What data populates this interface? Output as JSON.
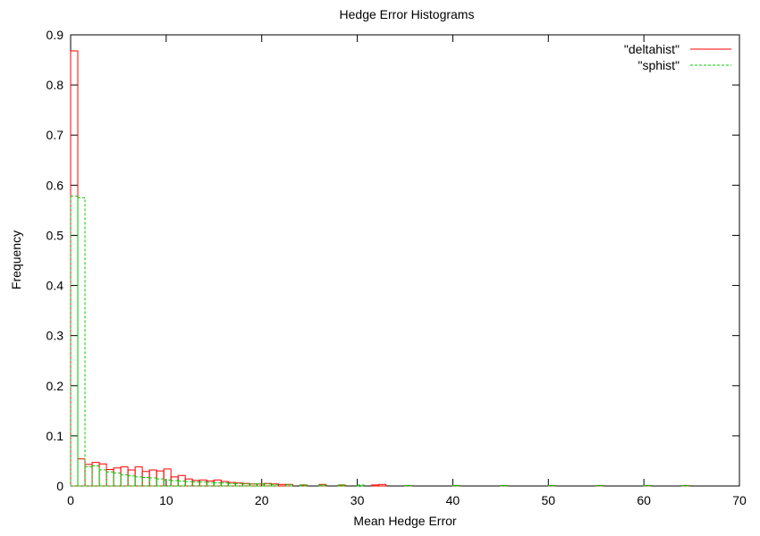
{
  "chart_data": {
    "type": "bar",
    "title": "Hedge Error Histograms",
    "xlabel": "Mean Hedge Error",
    "ylabel": "Frequency",
    "xlim": [
      0,
      70
    ],
    "ylim": [
      0,
      0.9
    ],
    "xticks": [
      "0",
      "10",
      "20",
      "30",
      "40",
      "50",
      "60",
      "70"
    ],
    "yticks": [
      "0",
      "0.1",
      "0.2",
      "0.3",
      "0.4",
      "0.5",
      "0.6",
      "0.7",
      "0.8",
      "0.9"
    ],
    "grid": false,
    "legend_position": "top-right",
    "bin_width": 0.75,
    "series": [
      {
        "name": "\"deltahist\"",
        "color": "#ff0000",
        "line_style": "solid",
        "x": [
          0,
          0.75,
          1.5,
          2.25,
          3,
          3.75,
          4.5,
          5.25,
          6,
          6.75,
          7.5,
          8.25,
          9,
          9.75,
          10.5,
          11.25,
          12,
          12.75,
          13.5,
          14.25,
          15,
          15.75,
          16.5,
          17.25,
          18,
          18.75,
          19.5,
          20.25,
          21,
          21.75,
          22.5,
          24,
          26,
          28,
          31.5,
          32.25,
          35,
          40,
          45,
          50,
          55,
          60,
          64
        ],
        "values": [
          0.868,
          0.054,
          0.043,
          0.047,
          0.044,
          0.033,
          0.036,
          0.038,
          0.032,
          0.038,
          0.029,
          0.032,
          0.03,
          0.034,
          0.018,
          0.021,
          0.014,
          0.011,
          0.012,
          0.01,
          0.012,
          0.009,
          0.007,
          0.006,
          0.005,
          0.004,
          0.004,
          0.005,
          0.004,
          0.003,
          0.003,
          0.002,
          0.003,
          0.002,
          0.002,
          0.003,
          0.001,
          0.001,
          0.001,
          0.001,
          0.001,
          0.001,
          0.001
        ]
      },
      {
        "name": "\"sphist\"",
        "color": "#00cc00",
        "line_style": "dashed",
        "x": [
          0,
          0.75,
          1.5,
          2.25,
          3,
          3.75,
          4.5,
          5.25,
          6,
          6.75,
          7.5,
          8.25,
          9,
          9.75,
          10.5,
          11.25,
          12,
          12.75,
          13.5,
          14.25,
          15,
          15.75,
          16.5,
          17.25,
          18,
          18.75,
          19.5,
          20.25,
          21,
          22.5,
          24,
          26,
          28,
          30,
          35,
          40,
          45,
          50,
          55,
          60,
          64
        ],
        "values": [
          0.578,
          0.575,
          0.038,
          0.04,
          0.032,
          0.028,
          0.026,
          0.022,
          0.02,
          0.018,
          0.017,
          0.016,
          0.014,
          0.012,
          0.011,
          0.01,
          0.009,
          0.008,
          0.008,
          0.007,
          0.006,
          0.006,
          0.005,
          0.005,
          0.004,
          0.004,
          0.004,
          0.004,
          0.003,
          0.003,
          0.002,
          0.002,
          0.002,
          0.002,
          0.001,
          0.001,
          0.001,
          0.001,
          0.001,
          0.001,
          0.001
        ]
      }
    ]
  }
}
